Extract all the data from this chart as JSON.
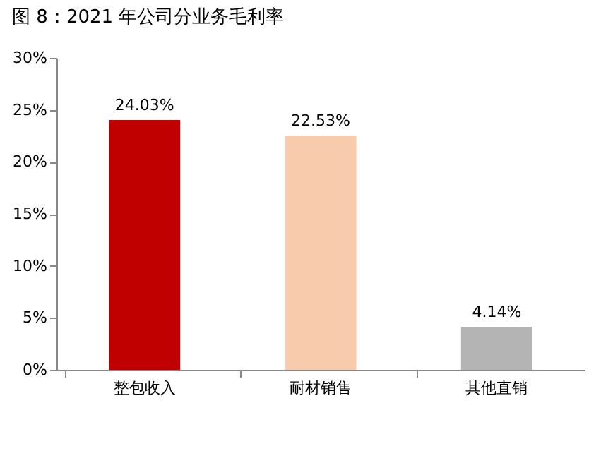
{
  "chart_data": {
    "type": "bar",
    "title": "图 8：2021 年公司分业务毛利率",
    "categories": [
      "整包收入",
      "耐材销售",
      "其他直销"
    ],
    "values": [
      24.03,
      22.53,
      4.14
    ],
    "colors": [
      "#c00000",
      "#f8cbad",
      "#b4b4b4"
    ],
    "value_labels": [
      "24.03%",
      "22.53%",
      "4.14%"
    ],
    "ylim": [
      0,
      30
    ],
    "yticks": [
      {
        "value": 0,
        "label": "0%"
      },
      {
        "value": 5,
        "label": "5%"
      },
      {
        "value": 10,
        "label": "10%"
      },
      {
        "value": 15,
        "label": "15%"
      },
      {
        "value": 20,
        "label": "20%"
      },
      {
        "value": 25,
        "label": "25%"
      },
      {
        "value": 30,
        "label": "30%"
      }
    ],
    "grid": false
  }
}
